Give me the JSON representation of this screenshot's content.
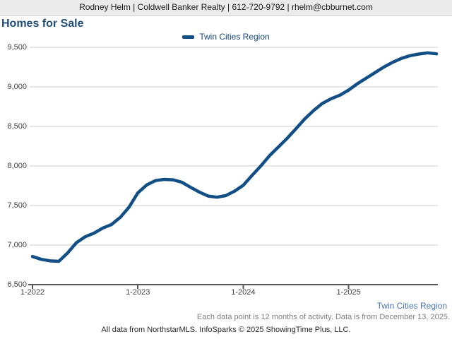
{
  "header": {
    "agent_line": "Rodney Helm | Coldwell Banker Realty | 612-720-9792 | rhelm@cbburnet.com"
  },
  "title": "Homes for Sale",
  "legend": {
    "label": "Twin Cities Region"
  },
  "footer": {
    "region_label": "Twin Cities Region",
    "note": "Each data point is 12 months of activity. Data is from December 13, 2025.",
    "credit": "All data from NorthstarMLS. InfoSparks © 2025 ShowingTime Plus, LLC."
  },
  "colors": {
    "series": "#124F87",
    "title_text": "#1F4E79",
    "legend_text": "#17477E",
    "region_caption": "#4677B5",
    "gridline": "#CCCCCC",
    "axis": "#58595B",
    "header_bar_bg": "#EBEBEB"
  },
  "chart_data": {
    "type": "line",
    "title": "Homes for Sale",
    "xlabel": "",
    "ylabel": "",
    "ylim": [
      6500,
      9500
    ],
    "y_step": 500,
    "grid": true,
    "legend_position": "top-center",
    "y_tick_labels": [
      "6,500",
      "7,000",
      "7,500",
      "8,000",
      "8,500",
      "9,000",
      "9,500"
    ],
    "x_ticks": [
      {
        "label": "1-2022",
        "index": 0
      },
      {
        "label": "1-2023",
        "index": 12
      },
      {
        "label": "1-2024",
        "index": 24
      },
      {
        "label": "1-2025",
        "index": 36
      }
    ],
    "series": [
      {
        "name": "Twin Cities Region",
        "color": "#124F87",
        "x": [
          "1-2022",
          "2-2022",
          "3-2022",
          "4-2022",
          "5-2022",
          "6-2022",
          "7-2022",
          "8-2022",
          "9-2022",
          "10-2022",
          "11-2022",
          "12-2022",
          "1-2023",
          "2-2023",
          "3-2023",
          "4-2023",
          "5-2023",
          "6-2023",
          "7-2023",
          "8-2023",
          "9-2023",
          "10-2023",
          "11-2023",
          "12-2023",
          "1-2024",
          "2-2024",
          "3-2024",
          "4-2024",
          "5-2024",
          "6-2024",
          "7-2024",
          "8-2024",
          "9-2024",
          "10-2024",
          "11-2024",
          "12-2024",
          "1-2025",
          "2-2025",
          "3-2025",
          "4-2025",
          "5-2025",
          "6-2025",
          "7-2025",
          "8-2025",
          "9-2025",
          "10-2025",
          "11-2025"
        ],
        "values": [
          6855,
          6820,
          6800,
          6795,
          6900,
          7030,
          7105,
          7150,
          7215,
          7260,
          7350,
          7480,
          7660,
          7760,
          7815,
          7830,
          7825,
          7795,
          7730,
          7670,
          7620,
          7605,
          7625,
          7680,
          7755,
          7880,
          8000,
          8130,
          8240,
          8350,
          8470,
          8595,
          8700,
          8790,
          8850,
          8895,
          8960,
          9040,
          9110,
          9180,
          9250,
          9310,
          9360,
          9395,
          9415,
          9430,
          9418
        ]
      }
    ]
  }
}
